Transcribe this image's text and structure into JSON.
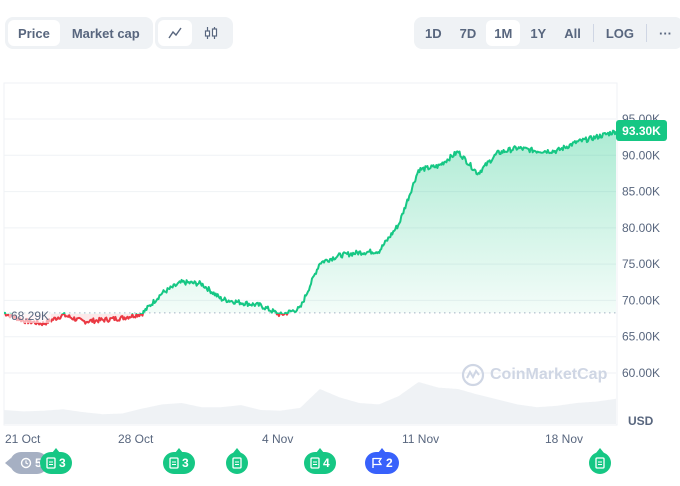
{
  "toolbar": {
    "type_toggle": [
      {
        "label": "Price",
        "active": true
      },
      {
        "label": "Market cap",
        "active": false
      }
    ],
    "chart_toggle": [
      {
        "icon": "line-chart-icon",
        "active": true
      },
      {
        "icon": "candlestick-icon",
        "active": false
      }
    ],
    "ranges": [
      {
        "label": "1D",
        "active": false
      },
      {
        "label": "7D",
        "active": false
      },
      {
        "label": "1M",
        "active": true
      },
      {
        "label": "1Y",
        "active": false
      },
      {
        "label": "All",
        "active": false
      }
    ],
    "log_label": "LOG",
    "more_label": "···"
  },
  "chart": {
    "current_price_label": "93.30K",
    "reference_label": "68.29K",
    "currency": "USD",
    "watermark": "CoinMarketCap",
    "colors": {
      "up": "#16c784",
      "down": "#ea3943",
      "volume": "#eff2f5",
      "grid": "#eff2f5"
    }
  },
  "events": [
    {
      "type": "history",
      "icon": "history-icon",
      "count": "5",
      "color": "gray"
    },
    {
      "type": "news",
      "icon": "document-icon",
      "count": "3",
      "color": "green"
    },
    {
      "type": "news",
      "icon": "document-icon",
      "count": "3",
      "color": "green"
    },
    {
      "type": "news",
      "icon": "document-icon",
      "count": "",
      "color": "green"
    },
    {
      "type": "news",
      "icon": "document-icon",
      "count": "4",
      "color": "green"
    },
    {
      "type": "flag",
      "icon": "flag-icon",
      "count": "2",
      "color": "blue"
    },
    {
      "type": "news",
      "icon": "document-icon",
      "count": "",
      "color": "green"
    }
  ],
  "chart_data": {
    "type": "area",
    "title": "",
    "xlabel": "",
    "ylabel": "USD",
    "x_tick_labels": [
      "21 Oct",
      "28 Oct",
      "4 Nov",
      "11 Nov",
      "18 Nov"
    ],
    "y_tick_labels": [
      "60.00K",
      "65.00K",
      "70.00K",
      "75.00K",
      "80.00K",
      "85.00K",
      "90.00K",
      "95.00K"
    ],
    "ylim": [
      55000,
      98000
    ],
    "baseline": 68290,
    "current": 93300,
    "grid": true,
    "legend": "none",
    "series": [
      {
        "name": "Price",
        "x": [
          "21 Oct",
          "22 Oct",
          "23 Oct",
          "24 Oct",
          "25 Oct",
          "26 Oct",
          "27 Oct",
          "28 Oct",
          "29 Oct",
          "30 Oct",
          "31 Oct",
          "1 Nov",
          "2 Nov",
          "3 Nov",
          "4 Nov",
          "5 Nov",
          "6 Nov",
          "7 Nov",
          "8 Nov",
          "9 Nov",
          "10 Nov",
          "11 Nov",
          "12 Nov",
          "13 Nov",
          "14 Nov",
          "15 Nov",
          "16 Nov",
          "17 Nov",
          "18 Nov",
          "19 Nov",
          "20 Nov",
          "21 Nov"
        ],
        "values": [
          68290,
          67200,
          66800,
          68000,
          67100,
          67300,
          67600,
          68200,
          71000,
          72500,
          72300,
          70200,
          69700,
          69300,
          68000,
          68900,
          75200,
          76200,
          76600,
          76800,
          80500,
          88000,
          88500,
          90500,
          87500,
          90300,
          91000,
          90600,
          90600,
          91800,
          92500,
          93300
        ]
      },
      {
        "name": "Volume",
        "values": [
          20,
          18,
          19,
          21,
          17,
          14,
          15,
          22,
          28,
          30,
          24,
          24,
          27,
          20,
          19,
          23,
          50,
          38,
          30,
          28,
          40,
          60,
          52,
          50,
          42,
          35,
          28,
          24,
          26,
          30,
          32,
          36
        ]
      }
    ]
  }
}
